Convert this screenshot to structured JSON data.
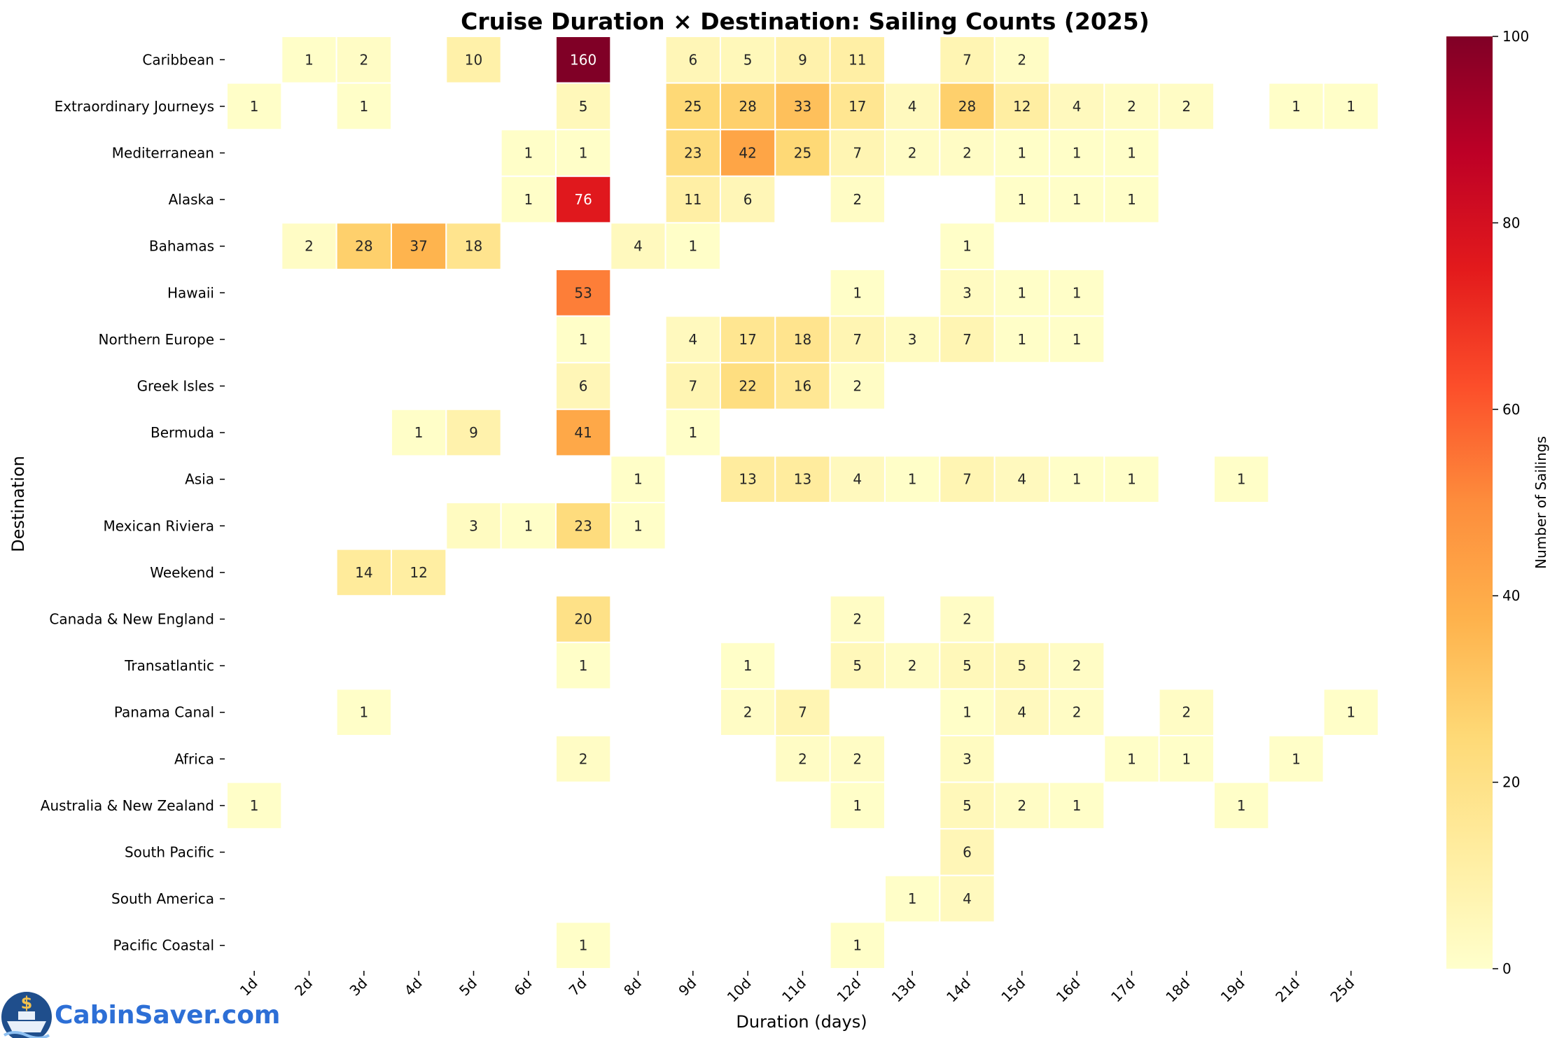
{
  "chart_data": {
    "type": "heatmap",
    "title": "Cruise Duration × Destination: Sailing Counts (2025)",
    "xlabel": "Duration (days)",
    "ylabel": "Destination",
    "colorbar_label": "Number of Sailings",
    "colorbar_ticks": [
      0,
      20,
      40,
      60,
      80,
      100
    ],
    "colorscale": "YlOrRd",
    "vmin": 0,
    "vmax": 100,
    "x_categories": [
      "1d",
      "2d",
      "3d",
      "4d",
      "5d",
      "6d",
      "7d",
      "8d",
      "9d",
      "10d",
      "11d",
      "12d",
      "13d",
      "14d",
      "15d",
      "16d",
      "17d",
      "18d",
      "19d",
      "21d",
      "25d"
    ],
    "y_categories": [
      "Caribbean",
      "Extraordinary Journeys",
      "Mediterranean",
      "Alaska",
      "Bahamas",
      "Hawaii",
      "Northern Europe",
      "Greek Isles",
      "Bermuda",
      "Asia",
      "Mexican Riviera",
      "Weekend",
      "Canada & New England",
      "Transatlantic",
      "Panama Canal",
      "Africa",
      "Australia & New Zealand",
      "South Pacific",
      "South America",
      "Pacific Coastal"
    ],
    "values": [
      [
        null,
        1,
        2,
        null,
        10,
        null,
        160,
        null,
        6,
        5,
        9,
        11,
        null,
        7,
        2,
        null,
        null,
        null,
        null,
        null,
        null
      ],
      [
        1,
        null,
        1,
        null,
        null,
        null,
        5,
        null,
        25,
        28,
        33,
        17,
        4,
        28,
        12,
        4,
        2,
        2,
        null,
        1,
        1
      ],
      [
        null,
        null,
        null,
        null,
        null,
        1,
        1,
        null,
        23,
        42,
        25,
        7,
        2,
        2,
        1,
        1,
        1,
        null,
        null,
        null,
        null
      ],
      [
        null,
        null,
        null,
        null,
        null,
        1,
        76,
        null,
        11,
        6,
        null,
        2,
        null,
        null,
        1,
        1,
        1,
        null,
        null,
        null,
        null
      ],
      [
        null,
        2,
        28,
        37,
        18,
        null,
        null,
        4,
        1,
        null,
        null,
        null,
        null,
        1,
        null,
        null,
        null,
        null,
        null,
        null,
        null
      ],
      [
        null,
        null,
        null,
        null,
        null,
        null,
        53,
        null,
        null,
        null,
        null,
        1,
        null,
        3,
        1,
        1,
        null,
        null,
        null,
        null,
        null
      ],
      [
        null,
        null,
        null,
        null,
        null,
        null,
        1,
        null,
        4,
        17,
        18,
        7,
        3,
        7,
        1,
        1,
        null,
        null,
        null,
        null,
        null
      ],
      [
        null,
        null,
        null,
        null,
        null,
        null,
        6,
        null,
        7,
        22,
        16,
        2,
        null,
        null,
        null,
        null,
        null,
        null,
        null,
        null,
        null
      ],
      [
        null,
        null,
        null,
        1,
        9,
        null,
        41,
        null,
        1,
        null,
        null,
        null,
        null,
        null,
        null,
        null,
        null,
        null,
        null,
        null,
        null
      ],
      [
        null,
        null,
        null,
        null,
        null,
        null,
        null,
        1,
        null,
        13,
        13,
        4,
        1,
        7,
        4,
        1,
        1,
        null,
        1,
        null,
        null
      ],
      [
        null,
        null,
        null,
        null,
        3,
        1,
        23,
        1,
        null,
        null,
        null,
        null,
        null,
        null,
        null,
        null,
        null,
        null,
        null,
        null,
        null
      ],
      [
        null,
        null,
        14,
        12,
        null,
        null,
        null,
        null,
        null,
        null,
        null,
        null,
        null,
        null,
        null,
        null,
        null,
        null,
        null,
        null,
        null
      ],
      [
        null,
        null,
        null,
        null,
        null,
        null,
        20,
        null,
        null,
        null,
        null,
        2,
        null,
        2,
        null,
        null,
        null,
        null,
        null,
        null,
        null
      ],
      [
        null,
        null,
        null,
        null,
        null,
        null,
        1,
        null,
        null,
        1,
        null,
        5,
        2,
        5,
        5,
        2,
        null,
        null,
        null,
        null,
        null
      ],
      [
        null,
        null,
        1,
        null,
        null,
        null,
        null,
        null,
        null,
        2,
        7,
        null,
        null,
        1,
        4,
        2,
        null,
        2,
        null,
        null,
        1
      ],
      [
        null,
        null,
        null,
        null,
        null,
        null,
        2,
        null,
        null,
        null,
        2,
        2,
        null,
        3,
        null,
        null,
        1,
        1,
        null,
        1,
        null
      ],
      [
        1,
        null,
        null,
        null,
        null,
        null,
        null,
        null,
        null,
        null,
        null,
        1,
        null,
        5,
        2,
        1,
        null,
        null,
        1,
        null,
        null
      ],
      [
        null,
        null,
        null,
        null,
        null,
        null,
        null,
        null,
        null,
        null,
        null,
        null,
        null,
        6,
        null,
        null,
        null,
        null,
        null,
        null,
        null
      ],
      [
        null,
        null,
        null,
        null,
        null,
        null,
        null,
        null,
        null,
        null,
        null,
        null,
        1,
        4,
        null,
        null,
        null,
        null,
        null,
        null,
        null
      ],
      [
        null,
        null,
        null,
        null,
        null,
        null,
        1,
        null,
        null,
        null,
        null,
        1,
        null,
        null,
        null,
        null,
        null,
        null,
        null,
        null,
        null
      ]
    ]
  },
  "logo": {
    "text": "CabinSaver.com",
    "icon": "ship-dollar-icon"
  }
}
